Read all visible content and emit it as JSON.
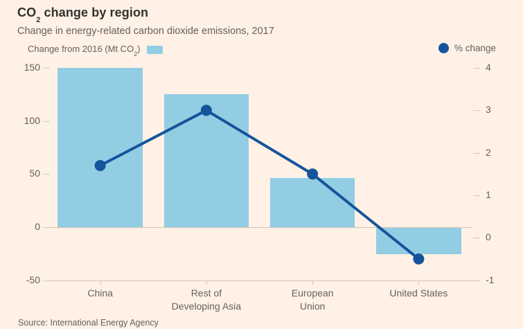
{
  "header": {
    "title_prefix": "CO",
    "title_subscript": "2",
    "title_suffix": " change by region",
    "subtitle": "Change in energy-related carbon dioxide emissions, 2017"
  },
  "legend": {
    "bar_label_prefix": "Change from 2016 (Mt CO",
    "bar_label_subscript": "2",
    "bar_label_suffix": ")",
    "bar_swatch_color": "#92cde4",
    "line_label": "% change",
    "line_marker_color": "#15549b"
  },
  "chart_data": {
    "type": "bar+line dual-axis combo",
    "categories": [
      "China",
      "Rest of\nDeveloping Asia",
      "European\nUnion",
      "United States"
    ],
    "series": [
      {
        "name": "Change from 2016 (Mt CO2)",
        "chart_type": "bar",
        "axis": "left",
        "values": [
          150,
          125,
          46,
          -25
        ],
        "color": "#92cde4"
      },
      {
        "name": "% change",
        "chart_type": "line",
        "axis": "right",
        "values": [
          1.7,
          3.0,
          1.5,
          -0.5
        ],
        "color": "#15549b"
      }
    ],
    "left_axis": {
      "ticks": [
        "150",
        "100",
        "50",
        "0",
        "-50"
      ],
      "tick_values": [
        150,
        100,
        50,
        0,
        -50
      ],
      "range": [
        -50,
        150
      ]
    },
    "right_axis": {
      "ticks": [
        "4",
        "3",
        "2",
        "1",
        "0",
        "-1"
      ],
      "tick_values": [
        4,
        3,
        2,
        1,
        0,
        -1
      ],
      "range": [
        -1,
        4
      ]
    },
    "grid": "off",
    "zero_line": true,
    "legend_position": "top (bars left, line right)"
  },
  "source": "Source: International Energy Agency"
}
